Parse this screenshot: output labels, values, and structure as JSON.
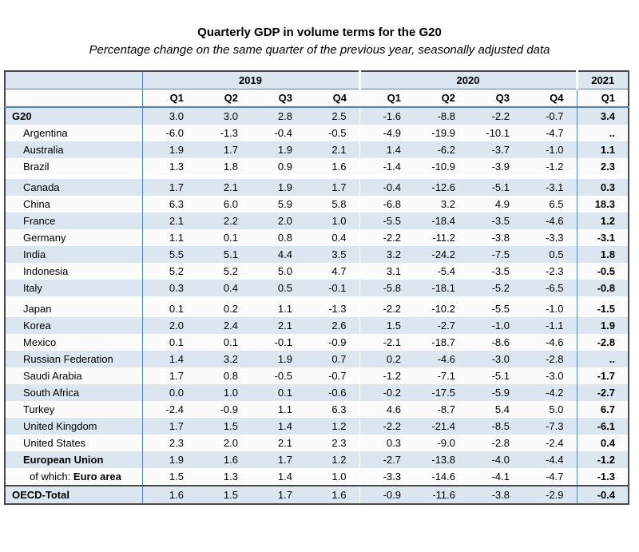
{
  "page_title": "Quarterly GDP in volume terms for the G20",
  "colors": {
    "stripe_blue": "#dce6f1",
    "line_blue": "#4f81bd",
    "outer_border": "#4a4a4a",
    "text": "#000000"
  },
  "chart_data": {
    "type": "table",
    "title": "Quarterly GDP in volume terms for the G20",
    "subtitle": "Percentage change on the same quarter of the previous year, seasonally adjusted data",
    "unit": "percent",
    "missing_symbol": "..",
    "year_groups": [
      {
        "label": "2019",
        "span": 4
      },
      {
        "label": "2020",
        "span": 4
      },
      {
        "label": "2021",
        "span": 1
      }
    ],
    "quarter_headers": [
      "Q1",
      "Q2",
      "Q3",
      "Q4",
      "Q1",
      "Q2",
      "Q3",
      "Q4",
      "Q1"
    ],
    "rows": [
      {
        "label": "G20",
        "bold": true,
        "indent": 0,
        "values": [
          "3.0",
          "3.0",
          "2.8",
          "2.5",
          "-1.6",
          "-8.8",
          "-2.2",
          "-0.7",
          "3.4"
        ]
      },
      {
        "label": "Argentina",
        "indent": 1,
        "values": [
          "-6.0",
          "-1.3",
          "-0.4",
          "-0.5",
          "-4.9",
          "-19.9",
          "-10.1",
          "-4.7",
          ".."
        ]
      },
      {
        "label": "Australia",
        "indent": 1,
        "values": [
          "1.9",
          "1.7",
          "1.9",
          "2.1",
          "1.4",
          "-6.2",
          "-3.7",
          "-1.0",
          "1.1"
        ]
      },
      {
        "label": "Brazil",
        "indent": 1,
        "spacer_after": true,
        "values": [
          "1.3",
          "1.8",
          "0.9",
          "1.6",
          "-1.4",
          "-10.9",
          "-3.9",
          "-1.2",
          "2.3"
        ]
      },
      {
        "label": "Canada",
        "indent": 1,
        "values": [
          "1.7",
          "2.1",
          "1.9",
          "1.7",
          "-0.4",
          "-12.6",
          "-5.1",
          "-3.1",
          "0.3"
        ]
      },
      {
        "label": "China",
        "indent": 1,
        "values": [
          "6.3",
          "6.0",
          "5.9",
          "5.8",
          "-6.8",
          "3.2",
          "4.9",
          "6.5",
          "18.3"
        ]
      },
      {
        "label": "France",
        "indent": 1,
        "values": [
          "2.1",
          "2.2",
          "2.0",
          "1.0",
          "-5.5",
          "-18.4",
          "-3.5",
          "-4.6",
          "1.2"
        ]
      },
      {
        "label": "Germany",
        "indent": 1,
        "values": [
          "1.1",
          "0.1",
          "0.8",
          "0.4",
          "-2.2",
          "-11.2",
          "-3.8",
          "-3.3",
          "-3.1"
        ]
      },
      {
        "label": "India",
        "indent": 1,
        "values": [
          "5.5",
          "5.1",
          "4.4",
          "3.5",
          "3.2",
          "-24.2",
          "-7.5",
          "0.5",
          "1.8"
        ]
      },
      {
        "label": "Indonesia",
        "indent": 1,
        "values": [
          "5.2",
          "5.2",
          "5.0",
          "4.7",
          "3.1",
          "-5.4",
          "-3.5",
          "-2.3",
          "-0.5"
        ]
      },
      {
        "label": "Italy",
        "indent": 1,
        "spacer_after": true,
        "values": [
          "0.3",
          "0.4",
          "0.5",
          "-0.1",
          "-5.8",
          "-18.1",
          "-5.2",
          "-6.5",
          "-0.8"
        ]
      },
      {
        "label": "Japan",
        "indent": 1,
        "values": [
          "0.1",
          "0.2",
          "1.1",
          "-1.3",
          "-2.2",
          "-10.2",
          "-5.5",
          "-1.0",
          "-1.5"
        ]
      },
      {
        "label": "Korea",
        "indent": 1,
        "values": [
          "2.0",
          "2.4",
          "2.1",
          "2.6",
          "1.5",
          "-2.7",
          "-1.0",
          "-1.1",
          "1.9"
        ]
      },
      {
        "label": "Mexico",
        "indent": 1,
        "values": [
          "0.1",
          "0.1",
          "-0.1",
          "-0.9",
          "-2.1",
          "-18.7",
          "-8.6",
          "-4.6",
          "-2.8"
        ]
      },
      {
        "label": "Russian Federation",
        "indent": 1,
        "values": [
          "1.4",
          "3.2",
          "1.9",
          "0.7",
          "0.2",
          "-4.6",
          "-3.0",
          "-2.8",
          ".."
        ]
      },
      {
        "label": "Saudi Arabia",
        "indent": 1,
        "values": [
          "1.7",
          "0.8",
          "-0.5",
          "-0.7",
          "-1.2",
          "-7.1",
          "-5.1",
          "-3.0",
          "-1.7"
        ]
      },
      {
        "label": "South Africa",
        "indent": 1,
        "values": [
          "0.0",
          "1.0",
          "0.1",
          "-0.6",
          "-0.2",
          "-17.5",
          "-5.9",
          "-4.2",
          "-2.7"
        ]
      },
      {
        "label": "Turkey",
        "indent": 1,
        "values": [
          "-2.4",
          "-0.9",
          "1.1",
          "6.3",
          "4.6",
          "-8.7",
          "5.4",
          "5.0",
          "6.7"
        ]
      },
      {
        "label": "United Kingdom",
        "indent": 1,
        "values": [
          "1.7",
          "1.5",
          "1.4",
          "1.2",
          "-2.2",
          "-21.4",
          "-8.5",
          "-7.3",
          "-6.1"
        ]
      },
      {
        "label": "United States",
        "indent": 1,
        "values": [
          "2.3",
          "2.0",
          "2.1",
          "2.3",
          "0.3",
          "-9.0",
          "-2.8",
          "-2.4",
          "0.4"
        ]
      },
      {
        "label": "European Union",
        "bold": true,
        "indent": 1,
        "values": [
          "1.9",
          "1.6",
          "1.7",
          "1.2",
          "-2.7",
          "-13.8",
          "-4.0",
          "-4.4",
          "-1.2"
        ]
      },
      {
        "label": "Euro area",
        "prefix": "of which: ",
        "bold": true,
        "indent": 2,
        "values": [
          "1.5",
          "1.3",
          "1.4",
          "1.0",
          "-3.3",
          "-14.6",
          "-4.1",
          "-4.7",
          "-1.3"
        ]
      },
      {
        "label": "OECD-Total",
        "bold": true,
        "indent": 0,
        "top_border": true,
        "values": [
          "1.6",
          "1.5",
          "1.7",
          "1.6",
          "-0.9",
          "-11.6",
          "-3.8",
          "-2.9",
          "-0.4"
        ]
      }
    ]
  }
}
